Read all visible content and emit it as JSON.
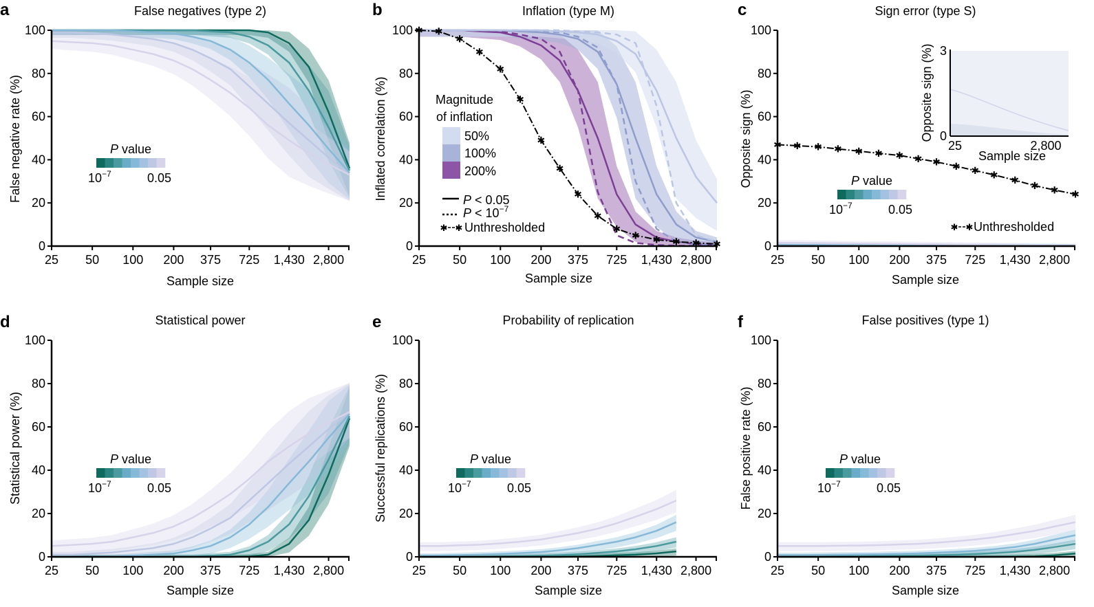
{
  "figure": {
    "x_ticks": [
      "25",
      "50",
      "100",
      "200",
      "375",
      "725",
      "1,430",
      "2,800"
    ],
    "x_tick_values": [
      25,
      50,
      100,
      200,
      375,
      725,
      1430,
      2800
    ],
    "y_ticks": [
      "0",
      "20",
      "40",
      "60",
      "80",
      "100"
    ],
    "xlabel": "Sample size",
    "pvalue_legend": {
      "title_italic": "P",
      "title_rest": " value",
      "min_base": "10",
      "min_exp": "−7",
      "max": "0.05",
      "colors": [
        "#0e6a5d",
        "#2a8480",
        "#4a9aa0",
        "#6aacc7",
        "#86b9d8",
        "#a3c1e0",
        "#bec7e3",
        "#d6d3ea"
      ]
    },
    "inflation_legend": {
      "title_line1": "Magnitude",
      "title_line2": "of inflation",
      "items": [
        {
          "label": "50%",
          "color": "#d3dcee"
        },
        {
          "label": "100%",
          "color": "#a8b3d9"
        },
        {
          "label": "200%",
          "color": "#8d55a5"
        }
      ],
      "line_solid_italic": "P",
      "line_solid_rest": " < 0.05",
      "line_dash_italic": "P",
      "line_dash_rest": " < 10",
      "line_dash_exp": "−7",
      "line_unthresholded": "Unthresholded"
    },
    "unthresholded_label": "Unthresholded",
    "inset": {
      "ylabel": "Opposite sign (%)",
      "xlabel": "Sample size",
      "x_ticks": [
        "25",
        "2,800"
      ],
      "y_ticks": [
        "0",
        "3"
      ]
    }
  },
  "chart_data": [
    {
      "panel": "a",
      "type": "line",
      "title": "False negatives (type 2)",
      "xlabel": "Sample size",
      "ylabel": "False negative rate (%)",
      "ylim": [
        0,
        100
      ],
      "x": [
        25,
        35,
        50,
        70,
        100,
        140,
        200,
        275,
        375,
        525,
        725,
        1000,
        1430,
        2000,
        2800,
        4000
      ],
      "series": [
        {
          "pv": 0,
          "values": [
            100,
            100,
            100,
            100,
            100,
            100,
            100,
            100,
            100,
            100,
            100,
            99,
            94,
            83,
            62,
            36
          ]
        },
        {
          "pv": 2,
          "values": [
            100,
            100,
            100,
            100,
            100,
            100,
            100,
            100,
            99.5,
            99,
            97,
            93,
            85,
            72,
            55,
            35
          ]
        },
        {
          "pv": 4,
          "values": [
            100,
            100,
            100,
            100,
            99.5,
            99,
            98.5,
            97,
            95,
            91,
            85,
            77,
            66,
            56,
            45,
            34
          ]
        },
        {
          "pv": 6,
          "values": [
            99,
            99,
            98.5,
            98,
            97,
            96,
            94,
            91,
            87,
            82,
            74,
            66,
            57,
            49,
            41,
            33
          ]
        },
        {
          "pv": 7,
          "values": [
            95,
            94.5,
            94,
            93,
            91,
            89,
            86,
            82,
            77,
            71,
            64,
            56,
            49,
            43,
            38,
            33
          ]
        }
      ]
    },
    {
      "panel": "b",
      "type": "line",
      "title": "Inflation (type M)",
      "xlabel": "Sample size",
      "ylabel": "Inflated correlation (%)",
      "ylim": [
        0,
        100
      ],
      "x": [
        25,
        35,
        50,
        70,
        100,
        140,
        200,
        275,
        375,
        525,
        725,
        1000,
        1430,
        2000,
        2800,
        4000
      ],
      "series": [
        {
          "name": "Unthresholded",
          "style": "unthresholded",
          "values": [
            100,
            99.5,
            96,
            90,
            82,
            68,
            49,
            36,
            24,
            14,
            8,
            5,
            3,
            2,
            1.5,
            1
          ]
        },
        {
          "name": "200%",
          "threshold": "P < 0.05",
          "style": "solid",
          "values": [
            100,
            100,
            100,
            99.5,
            99,
            97,
            93,
            86,
            72,
            50,
            24,
            10,
            4,
            2,
            1,
            0.5
          ]
        },
        {
          "name": "200%",
          "threshold": "P < 10−7",
          "style": "dashed",
          "values": [
            100,
            100,
            100,
            99.8,
            99.5,
            98,
            96,
            90,
            72,
            25,
            5,
            1.5,
            0.5,
            0.2,
            0.1,
            0
          ]
        },
        {
          "name": "100%",
          "threshold": "P < 0.05",
          "style": "solid",
          "values": [
            100,
            100,
            100,
            100,
            100,
            99.5,
            99,
            98,
            96,
            90,
            75,
            50,
            24,
            10,
            4,
            2
          ]
        },
        {
          "name": "100%",
          "threshold": "P < 10−7",
          "style": "dashed",
          "values": [
            100,
            100,
            100,
            100,
            100,
            100,
            99.5,
            99,
            97,
            92,
            75,
            30,
            8,
            2,
            1,
            0.5
          ]
        },
        {
          "name": "50%",
          "threshold": "P < 0.05",
          "style": "solid",
          "values": [
            100,
            100,
            100,
            100,
            100,
            100,
            100,
            99.5,
            99,
            98,
            95,
            89,
            72,
            50,
            32,
            20
          ]
        },
        {
          "name": "50%",
          "threshold": "P < 10−7",
          "style": "dashed",
          "values": [
            100,
            100,
            100,
            100,
            100,
            100,
            100,
            100,
            99.5,
            99,
            98,
            94,
            65,
            20,
            5,
            2
          ]
        }
      ]
    },
    {
      "panel": "c",
      "type": "line",
      "title": "Sign error (type S)",
      "xlabel": "Sample size",
      "ylabel": "Opposite sign (%)",
      "ylim": [
        0,
        100
      ],
      "x": [
        25,
        35,
        50,
        70,
        100,
        140,
        200,
        275,
        375,
        525,
        725,
        1000,
        1430,
        2000,
        2800,
        4000
      ],
      "series": [
        {
          "name": "Unthresholded",
          "style": "unthresholded",
          "values": [
            47,
            46.5,
            46,
            45,
            44,
            43,
            42,
            40.5,
            39,
            37,
            35,
            33,
            30.5,
            28,
            26,
            24
          ]
        },
        {
          "pv": 7,
          "values": [
            1.5,
            1.5,
            1.4,
            1.3,
            1.2,
            1.1,
            1,
            0.9,
            0.8,
            0.7,
            0.6,
            0.5,
            0.4,
            0.3,
            0.2,
            0.1
          ]
        },
        {
          "pv": 4,
          "values": [
            0.6,
            0.5,
            0.5,
            0.4,
            0.4,
            0.3,
            0.3,
            0.2,
            0.2,
            0.1,
            0.1,
            0.1,
            0.1,
            0,
            0,
            0
          ]
        }
      ]
    },
    {
      "panel": "d",
      "type": "line",
      "title": "Statistical power",
      "xlabel": "Sample size",
      "ylabel": "Statistical power (%)",
      "ylim": [
        0,
        100
      ],
      "x": [
        25,
        35,
        50,
        70,
        100,
        140,
        200,
        275,
        375,
        525,
        725,
        1000,
        1430,
        2000,
        2800,
        4000
      ],
      "series": [
        {
          "pv": 0,
          "values": [
            0,
            0,
            0,
            0,
            0,
            0,
            0,
            0,
            0,
            0,
            0.2,
            1,
            6,
            17,
            38,
            64
          ]
        },
        {
          "pv": 2,
          "values": [
            0,
            0,
            0,
            0,
            0,
            0,
            0,
            0,
            0.5,
            1,
            3,
            7,
            15,
            28,
            45,
            65
          ]
        },
        {
          "pv": 4,
          "values": [
            0,
            0,
            0,
            0,
            0.5,
            1,
            1.5,
            3,
            5,
            9,
            15,
            23,
            34,
            44,
            55,
            66
          ]
        },
        {
          "pv": 6,
          "values": [
            1,
            1,
            1.5,
            2,
            3,
            4,
            6,
            9,
            13,
            18,
            26,
            34,
            43,
            51,
            59,
            67
          ]
        },
        {
          "pv": 7,
          "values": [
            5,
            5.5,
            6,
            7,
            9,
            11,
            14,
            18,
            23,
            29,
            36,
            44,
            51,
            57,
            62,
            67
          ]
        }
      ]
    },
    {
      "panel": "e",
      "type": "line",
      "title": "Probability of replication",
      "xlabel": "Sample size",
      "ylabel": "Successful replications (%)",
      "ylim": [
        0,
        100
      ],
      "x": [
        25,
        35,
        50,
        70,
        100,
        140,
        200,
        275,
        375,
        525,
        725,
        1000,
        1430,
        2000
      ],
      "series": [
        {
          "pv": 0,
          "values": [
            0,
            0,
            0,
            0,
            0,
            0,
            0,
            0,
            0.2,
            0.4,
            0.7,
            1,
            1.6,
            2.5
          ]
        },
        {
          "pv": 2,
          "values": [
            0,
            0,
            0,
            0,
            0.2,
            0.3,
            0.5,
            0.8,
            1.2,
            1.8,
            2.5,
            3.5,
            5,
            7
          ]
        },
        {
          "pv": 4,
          "values": [
            0.5,
            0.6,
            0.8,
            1,
            1.3,
            1.7,
            2.2,
            3,
            4,
            5.5,
            7,
            9,
            12,
            16
          ]
        },
        {
          "pv": 7,
          "values": [
            5,
            5,
            5.3,
            5.6,
            6.2,
            7,
            8,
            9.5,
            11,
            13,
            15.5,
            18.5,
            22,
            26
          ]
        }
      ]
    },
    {
      "panel": "f",
      "type": "line",
      "title": "False positives (type 1)",
      "xlabel": "Sample size",
      "ylabel": "False positive rate (%)",
      "ylim": [
        0,
        100
      ],
      "x": [
        25,
        35,
        50,
        70,
        100,
        140,
        200,
        275,
        375,
        525,
        725,
        1000,
        1430,
        2000,
        2800,
        4000
      ],
      "series": [
        {
          "pv": 0,
          "values": [
            0,
            0,
            0,
            0,
            0,
            0,
            0,
            0,
            0,
            0,
            0,
            0,
            0.1,
            0.3,
            0.7,
            1.5
          ]
        },
        {
          "pv": 2,
          "values": [
            0.2,
            0.2,
            0.2,
            0.3,
            0.3,
            0.4,
            0.5,
            0.6,
            0.8,
            1,
            1.3,
            1.7,
            2.3,
            3.2,
            4.5,
            6
          ]
        },
        {
          "pv": 4,
          "values": [
            0.8,
            0.8,
            0.9,
            1,
            1.1,
            1.2,
            1.4,
            1.6,
            1.9,
            2.3,
            2.8,
            3.5,
            4.5,
            6,
            8,
            10
          ]
        },
        {
          "pv": 7,
          "values": [
            5,
            5,
            5,
            5.1,
            5.2,
            5.4,
            5.7,
            6,
            6.5,
            7.2,
            8,
            9,
            10.5,
            12,
            14,
            16
          ]
        }
      ]
    }
  ]
}
